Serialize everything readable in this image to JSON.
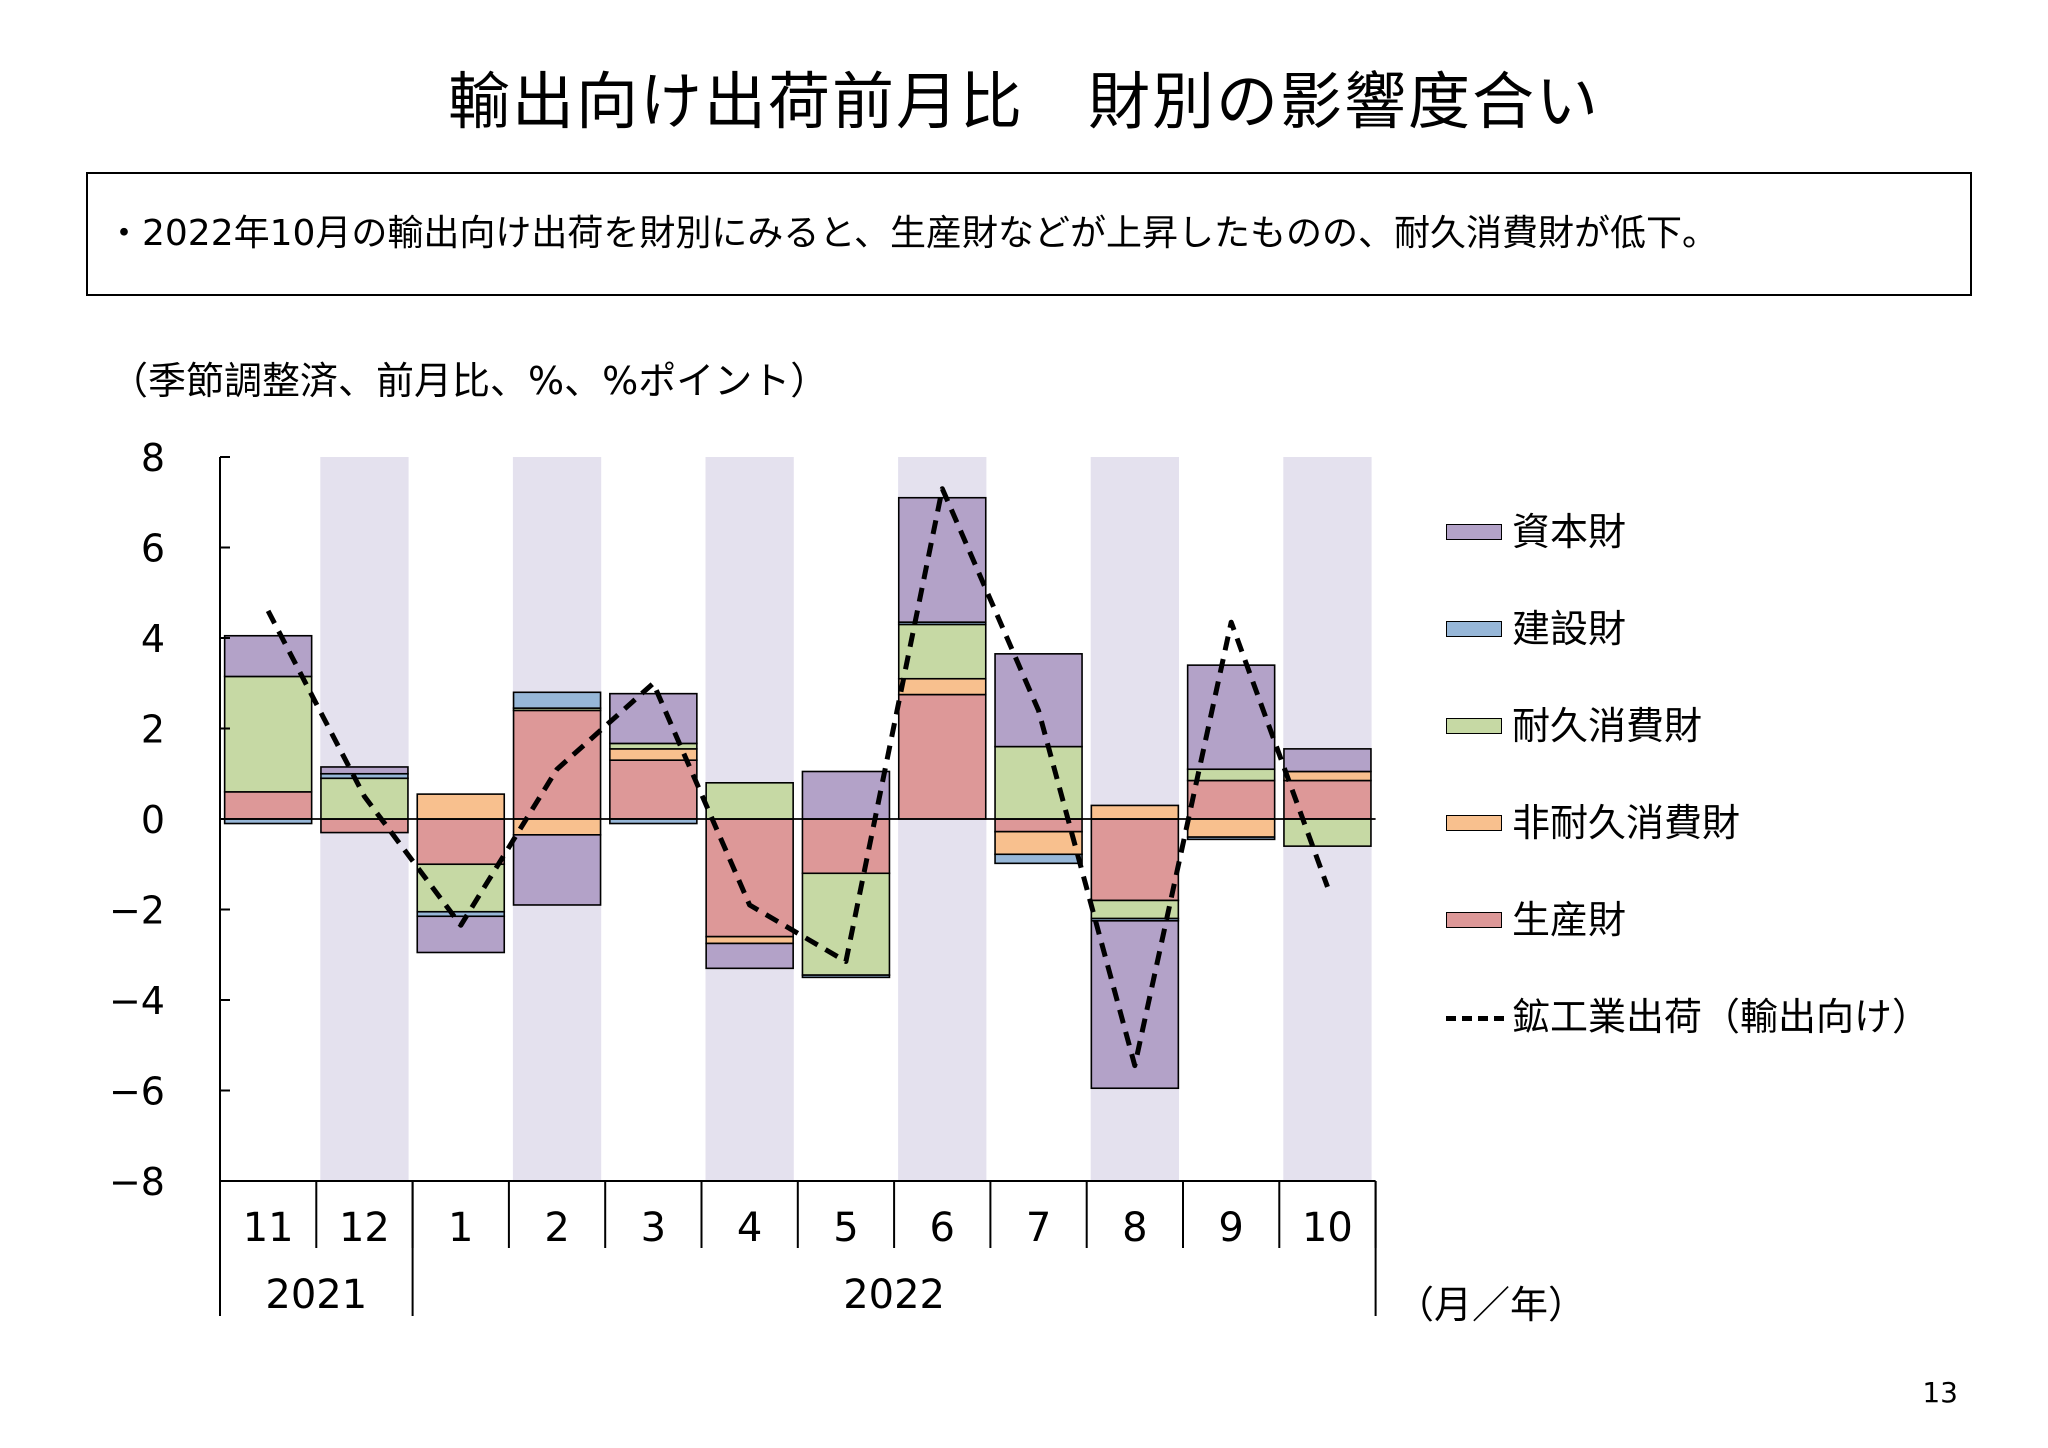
{
  "title": "輸出向け出荷前月比　財別の影響度合い",
  "summary": "・2022年10月の輸出向け出荷を財別にみると、生産財などが上昇したものの、耐久消費財が低下。",
  "unit_note": "（季節調整済、前月比、%、%ポイント）",
  "x_unit": "（月／年）",
  "page_number": "13",
  "colors": {
    "shade": "#e4e1ee",
    "資本財": "#b3a2c8",
    "建設財": "#97b7d8",
    "耐久消費財": "#c6d9a4",
    "非耐久消費財": "#f8c08e",
    "生産財": "#dd9898",
    "line": "#000000"
  },
  "chart_data": {
    "type": "bar",
    "stacked": true,
    "categories": [
      "11",
      "12",
      "1",
      "2",
      "3",
      "4",
      "5",
      "6",
      "7",
      "8",
      "9",
      "10"
    ],
    "year_labels": [
      {
        "label": "2021",
        "from": 0,
        "to": 1
      },
      {
        "label": "2022",
        "from": 2,
        "to": 11
      }
    ],
    "ylim": [
      -8,
      8
    ],
    "yticks": [
      -8,
      -6,
      -4,
      -2,
      0,
      2,
      4,
      6,
      8
    ],
    "ytick_labels": [
      "−8",
      "−6",
      "−4",
      "−2",
      "0",
      "2",
      "4",
      "6",
      "8"
    ],
    "shaded_categories": [
      1,
      3,
      5,
      7,
      9,
      11
    ],
    "series": [
      {
        "name": "生産財",
        "values": [
          0.6,
          -0.3,
          -1.0,
          2.4,
          1.3,
          -2.6,
          -1.2,
          2.75,
          -0.28,
          -1.8,
          0.85,
          0.85
        ]
      },
      {
        "name": "非耐久消費財",
        "values": [
          0.0,
          0.0,
          0.55,
          -0.35,
          0.25,
          -0.15,
          0.0,
          0.35,
          -0.5,
          0.3,
          -0.4,
          0.2
        ]
      },
      {
        "name": "耐久消費財",
        "values": [
          2.55,
          0.9,
          -1.05,
          0.05,
          0.12,
          0.8,
          -2.25,
          1.2,
          1.6,
          -0.4,
          0.25,
          -0.6
        ]
      },
      {
        "name": "建設財",
        "values": [
          -0.1,
          0.1,
          -0.1,
          0.35,
          -0.1,
          0.0,
          -0.05,
          0.05,
          -0.2,
          -0.05,
          -0.05,
          0.0
        ]
      },
      {
        "name": "資本財",
        "values": [
          0.9,
          0.15,
          -0.8,
          -1.55,
          1.1,
          -0.55,
          1.05,
          2.75,
          2.05,
          -3.7,
          2.3,
          0.5
        ]
      }
    ],
    "line": {
      "name": "鉱工業出荷（輸出向け）",
      "values": [
        4.6,
        0.5,
        -2.35,
        1.1,
        3.0,
        -1.9,
        -3.15,
        7.3,
        2.4,
        -5.45,
        4.35,
        -1.5
      ]
    },
    "legend": [
      "資本財",
      "建設財",
      "耐久消費財",
      "非耐久消費財",
      "生産財",
      "鉱工業出荷（輸出向け）"
    ],
    "legend_position": "right"
  }
}
